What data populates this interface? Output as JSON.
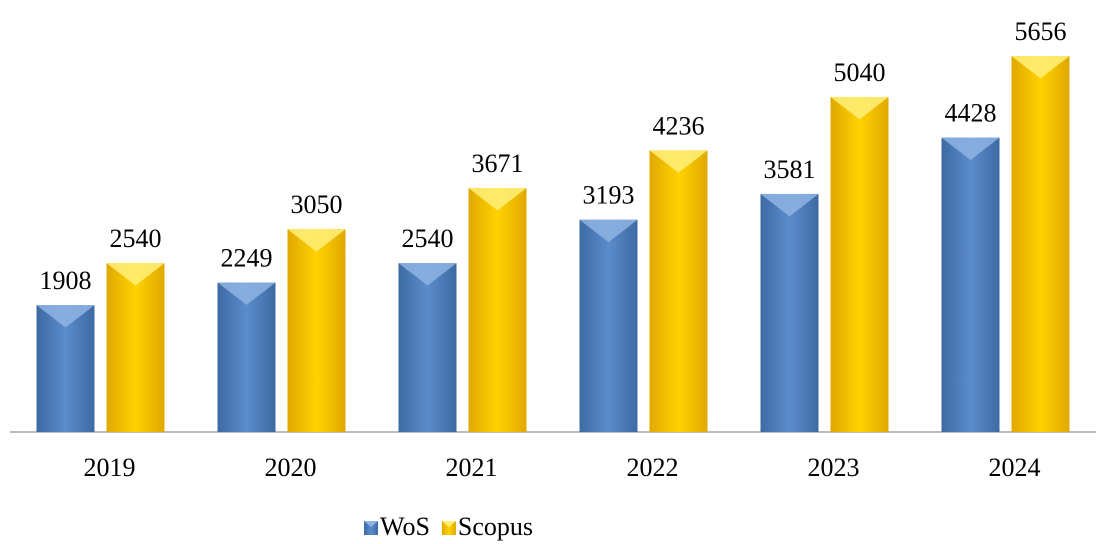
{
  "chart_data": {
    "type": "bar",
    "categories": [
      "2019",
      "2020",
      "2021",
      "2022",
      "2023",
      "2024"
    ],
    "series": [
      {
        "name": "WoS",
        "color": "#4f81bd",
        "values": [
          1908,
          2249,
          2540,
          3193,
          3581,
          4428
        ]
      },
      {
        "name": "Scopus",
        "color": "#ffc000",
        "values": [
          2540,
          3050,
          3671,
          4236,
          5040,
          5656
        ]
      }
    ],
    "legend": "bottom"
  }
}
